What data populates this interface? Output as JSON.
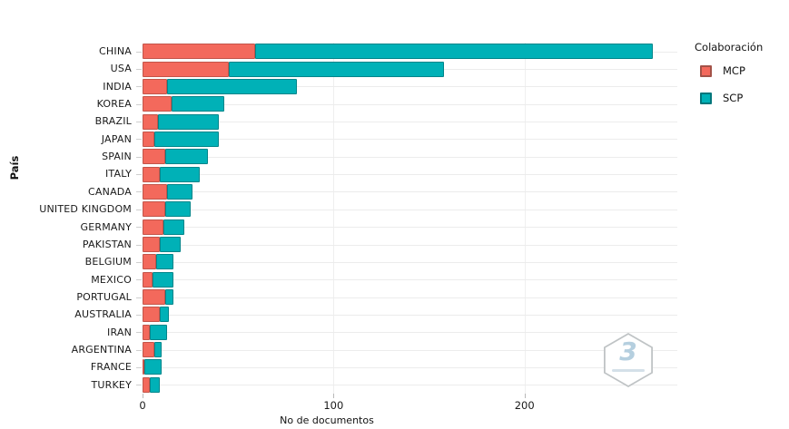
{
  "figure": {
    "background": "#ffffff"
  },
  "chart_data": {
    "type": "bar",
    "orientation": "horizontal",
    "stacked": true,
    "title": "",
    "xlabel": "No de documentos",
    "ylabel": "País",
    "xlim": [
      0,
      280
    ],
    "x_ticks": [
      0,
      100,
      200
    ],
    "grid": "light horizontal per category, faint vertical at ticks",
    "categories": [
      "CHINA",
      "USA",
      "INDIA",
      "KOREA",
      "BRAZIL",
      "JAPAN",
      "SPAIN",
      "ITALY",
      "CANADA",
      "UNITED KINGDOM",
      "GERMANY",
      "PAKISTAN",
      "BELGIUM",
      "MEXICO",
      "PORTUGAL",
      "AUSTRALIA",
      "IRAN",
      "ARGENTINA",
      "FRANCE",
      "TURKEY"
    ],
    "series": [
      {
        "name": "MCP",
        "color": "#f3695c",
        "border_color": "#c2554a",
        "values": [
          59,
          45,
          13,
          15,
          8,
          6,
          12,
          9,
          13,
          12,
          11,
          9,
          7,
          5,
          12,
          9,
          4,
          6,
          1,
          4
        ]
      },
      {
        "name": "SCP",
        "color": "#00b1b7",
        "border_color": "#00858a",
        "values": [
          208,
          113,
          68,
          28,
          32,
          34,
          22,
          21,
          13,
          13,
          11,
          11,
          9,
          11,
          4,
          5,
          9,
          4,
          9,
          5
        ]
      }
    ],
    "legend": {
      "title": "Colaboración",
      "position": "top-right"
    }
  },
  "legend": {
    "title": "Colaboración",
    "items": [
      {
        "label": "MCP",
        "color": "#f3695c"
      },
      {
        "label": "SCP",
        "color": "#00b1b7"
      }
    ]
  },
  "axes": {
    "x_title": "No de documentos",
    "y_title": "País",
    "x_tick_labels": [
      "0",
      "100",
      "200"
    ]
  },
  "watermark": {
    "symbol": "3"
  }
}
